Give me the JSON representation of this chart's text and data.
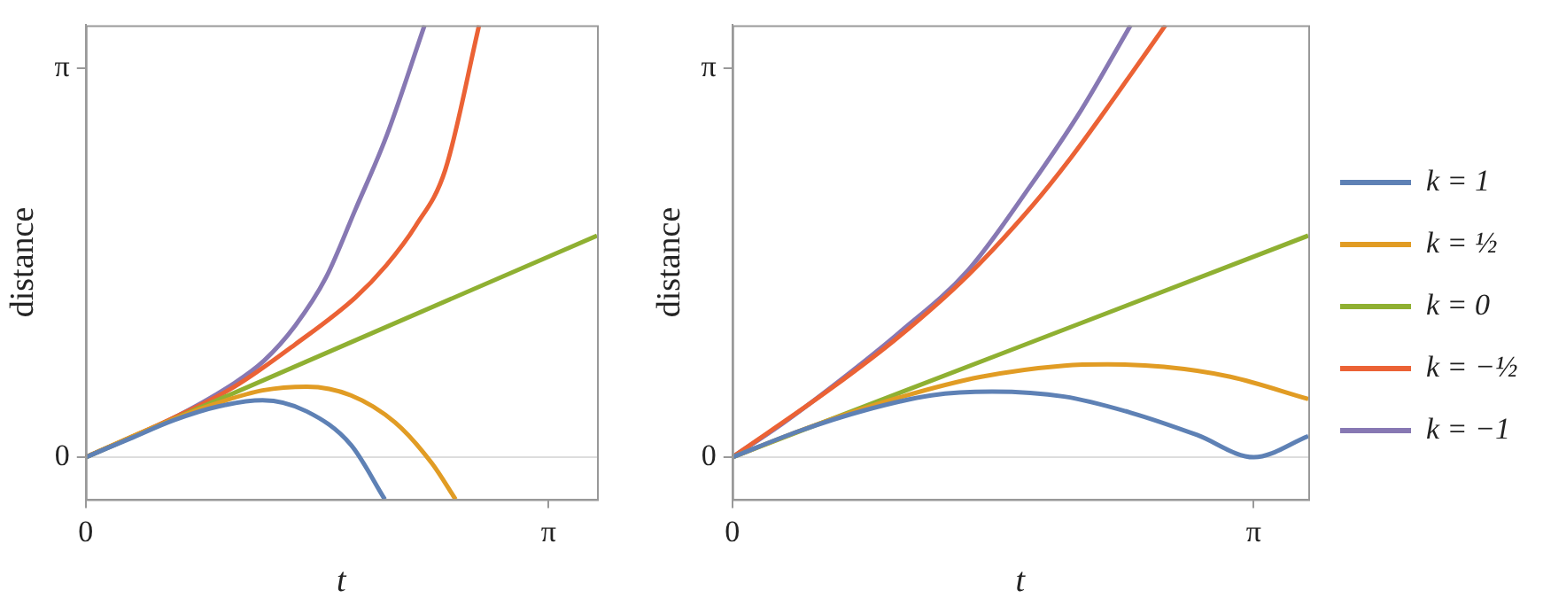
{
  "chart_data": [
    {
      "type": "line",
      "xlabel": "t",
      "ylabel": "distance",
      "xlim": [
        0,
        3.47
      ],
      "ylim": [
        -0.34,
        3.49
      ],
      "xticks": [
        0,
        {
          "value": 3.14159,
          "label": "π"
        }
      ],
      "yticks": [
        0,
        {
          "value": 3.14159,
          "label": "π"
        }
      ],
      "grid": false,
      "legend": false,
      "ref_lines": [
        {
          "axis": "y",
          "value": 0,
          "color": "#dddddd"
        }
      ],
      "series": [
        {
          "color": "#5e81b5",
          "x": [
            0,
            0.3,
            0.6,
            0.9,
            1.2,
            1.5,
            1.8,
            2.03
          ],
          "values": [
            0,
            0.15,
            0.3,
            0.41,
            0.46,
            0.37,
            0.1,
            -0.34
          ]
        },
        {
          "color": "#e19c24",
          "x": [
            0,
            0.3,
            0.6,
            0.9,
            1.2,
            1.5,
            1.8,
            2.1,
            2.35,
            2.51
          ],
          "values": [
            0,
            0.16,
            0.31,
            0.44,
            0.54,
            0.57,
            0.5,
            0.28,
            -0.05,
            -0.34
          ]
        },
        {
          "color": "#8fb032",
          "x": [
            0,
            3.47
          ],
          "values": [
            0,
            1.79
          ]
        },
        {
          "color": "#eb6235",
          "x": [
            0,
            0.6,
            1.01,
            1.42,
            1.83,
            2.04,
            2.24,
            2.44,
            2.67
          ],
          "values": [
            0,
            0.32,
            0.57,
            0.91,
            1.29,
            1.55,
            1.87,
            2.32,
            3.49
          ]
        },
        {
          "color": "#8778b3",
          "x": [
            0,
            0.6,
            1.01,
            1.21,
            1.42,
            1.63,
            1.83,
            2.04,
            2.3
          ],
          "values": [
            0,
            0.32,
            0.6,
            0.78,
            1.06,
            1.45,
            2.0,
            2.59,
            3.49
          ]
        }
      ]
    },
    {
      "type": "line",
      "xlabel": "t",
      "ylabel": "distance",
      "xlim": [
        0,
        3.47
      ],
      "ylim": [
        -0.34,
        3.49
      ],
      "xticks": [
        0,
        {
          "value": 3.14159,
          "label": "π"
        }
      ],
      "yticks": [
        0,
        {
          "value": 3.14159,
          "label": "π"
        }
      ],
      "grid": false,
      "legend": "right",
      "ref_lines": [
        {
          "axis": "y",
          "value": 0,
          "color": "#dddddd"
        }
      ],
      "series": [
        {
          "name": "k = 1",
          "color": "#5e81b5",
          "x": [
            0,
            0.4,
            0.8,
            1.2,
            1.565,
            2.0,
            2.4,
            2.8,
            3.14159,
            3.47
          ],
          "values": [
            0,
            0.21,
            0.38,
            0.5,
            0.53,
            0.49,
            0.36,
            0.18,
            0,
            0.17
          ]
        },
        {
          "name": "k = ½",
          "color": "#e19c24",
          "x": [
            0,
            0.5,
            1,
            1.5,
            2,
            2.26,
            2.6,
            3,
            3.47
          ],
          "values": [
            0,
            0.26,
            0.48,
            0.65,
            0.74,
            0.75,
            0.73,
            0.65,
            0.47
          ]
        },
        {
          "name": "k = 0",
          "color": "#8fb032",
          "x": [
            0,
            3.47
          ],
          "values": [
            0,
            1.79
          ]
        },
        {
          "name": "k = −½",
          "color": "#eb6235",
          "x": [
            0,
            0.6,
            1.0,
            1.42,
            1.8,
            2.04,
            2.3,
            2.61
          ],
          "values": [
            0,
            0.56,
            0.97,
            1.47,
            2.02,
            2.42,
            2.9,
            3.49
          ]
        },
        {
          "name": "k = −1",
          "color": "#8778b3",
          "x": [
            0,
            0.3,
            0.6,
            1.0,
            1.42,
            1.8,
            2.1,
            2.4
          ],
          "values": [
            0,
            0.27,
            0.57,
            1.0,
            1.51,
            2.2,
            2.8,
            3.49
          ]
        }
      ]
    }
  ]
}
